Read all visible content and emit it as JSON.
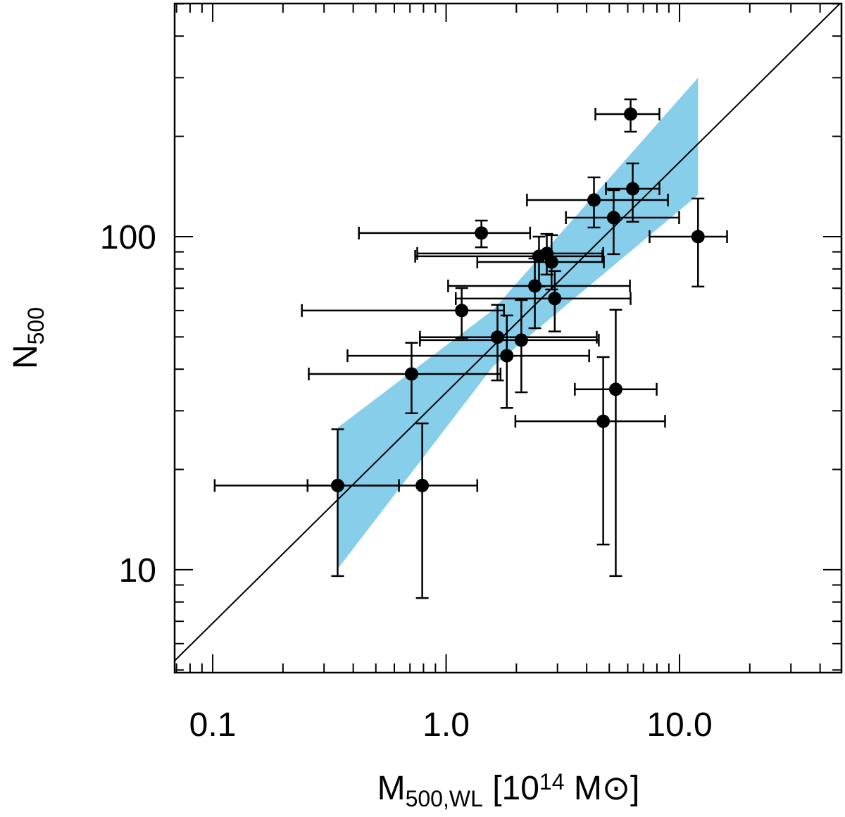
{
  "chart_data": {
    "type": "scatter",
    "xlog": true,
    "ylog": true,
    "xlim": [
      0.0687,
      49.4
    ],
    "ylim": [
      4.91,
      501
    ],
    "xticks": [
      {
        "value": 0.1,
        "label": "0.1"
      },
      {
        "value": 1,
        "label": "1.0"
      },
      {
        "value": 10,
        "label": "10.0"
      }
    ],
    "yticks": [
      10,
      100
    ],
    "xminorticks": [
      0.07,
      0.08,
      0.09,
      0.2,
      0.3,
      0.4,
      0.5,
      0.6,
      0.7,
      0.8,
      0.9,
      2,
      3,
      4,
      5,
      6,
      7,
      8,
      9,
      20,
      30,
      40
    ],
    "yminorticks": [
      5,
      6,
      7,
      8,
      9,
      20,
      30,
      40,
      50,
      60,
      70,
      80,
      90,
      200,
      300,
      400,
      500
    ],
    "xlabel": [
      {
        "text": "M"
      },
      {
        "text": "500,WL",
        "sub": true
      },
      {
        "text": " [10"
      },
      {
        "text": "14",
        "sup": true
      },
      {
        "text": "  M⊙]"
      }
    ],
    "ylabel": [
      {
        "text": "N"
      },
      {
        "text": "500",
        "sub": true
      }
    ],
    "band": {
      "color": "#87ceeb",
      "x": [
        0.343,
        1.59,
        12.0
      ],
      "lower": [
        10.05,
        40.8,
        133.4
      ],
      "upper": [
        26.7,
        60.3,
        300
      ]
    },
    "line": {
      "color": "#000000",
      "x": [
        0.0687,
        49.4
      ],
      "y": [
        5.33,
        506
      ]
    },
    "series": [
      {
        "color": "#000000",
        "x": [
          0.343,
          0.79,
          0.711,
          1.166,
          1.416,
          1.66,
          1.82,
          2.1,
          2.4,
          2.5,
          2.7,
          2.83,
          2.92,
          4.3,
          5.22,
          6.3,
          6.17,
          12.0,
          5.33,
          4.71
        ],
        "x_low": [
          0.102,
          0.255,
          0.258,
          0.241,
          0.423,
          0.773,
          0.378,
          0.772,
          1.02,
          0.737,
          0.752,
          1.36,
          1.1,
          2.22,
          3.26,
          4.84,
          4.36,
          7.44,
          3.56,
          1.98
        ],
        "x_high": [
          0.628,
          1.36,
          1.71,
          1.77,
          2.29,
          4.42,
          4.1,
          4.51,
          6.13,
          4.67,
          4.71,
          4.74,
          6.17,
          8.92,
          9.96,
          8.2,
          8.2,
          15.98,
          7.98,
          8.67
        ],
        "values": [
          17.9,
          17.9,
          38.7,
          60.0,
          102.5,
          49.9,
          43.9,
          48.9,
          71.1,
          87.3,
          89.0,
          83.9,
          65.2,
          128.8,
          114.0,
          139.2,
          233.3,
          100,
          34.8,
          27.9
        ],
        "y_low": [
          9.57,
          8.22,
          29.5,
          49.6,
          92.9,
          37.0,
          30.6,
          34.1,
          53.1,
          70.8,
          76.9,
          69.4,
          51.9,
          106.5,
          88.6,
          110.8,
          206.5,
          70.8,
          9.57,
          11.9
        ],
        "y_high": [
          26.4,
          27.5,
          48.0,
          70.1,
          111.8,
          62.4,
          58.0,
          64.5,
          86.0,
          100,
          101.9,
          101,
          78.8,
          150.6,
          137.9,
          165.9,
          258.4,
          130.1,
          60.3,
          43.5
        ]
      }
    ]
  }
}
